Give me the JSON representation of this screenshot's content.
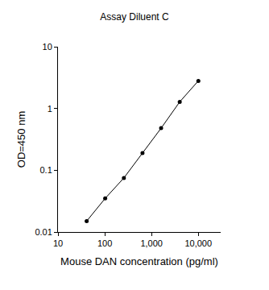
{
  "chart_data": {
    "type": "line",
    "title": "Assay Diluent C",
    "x_label": "Mouse DAN concentration (pg/ml)",
    "y_label": "OD=450 nm",
    "x": [
      41,
      102,
      256,
      640,
      1600,
      4000,
      10000
    ],
    "values": [
      0.015,
      0.035,
      0.075,
      0.19,
      0.48,
      1.28,
      2.8
    ],
    "color": "#000000",
    "marker": "circle",
    "line_style": "solid",
    "log": true,
    "grid": false,
    "xlim": [
      10,
      30000
    ],
    "ylim": [
      0.01,
      10
    ],
    "xticks": [
      10,
      100,
      {
        "value": 1000,
        "label": "1,000"
      },
      {
        "value": 10000,
        "label": "10,000"
      }
    ],
    "yticks": [
      0.01,
      0.1,
      1,
      10
    ]
  }
}
